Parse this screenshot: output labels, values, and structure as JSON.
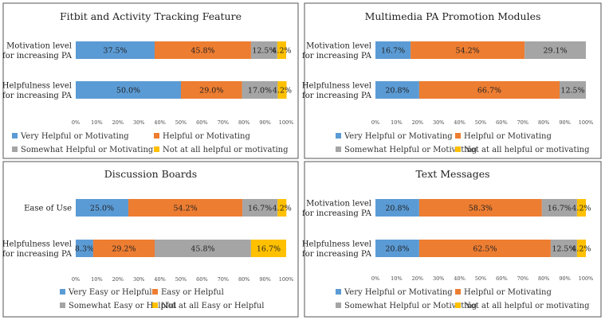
{
  "colors": {
    "blue": "#5b9bd5",
    "orange": "#ed7d31",
    "gray": "#a5a5a5",
    "yellow": "#ffc000"
  },
  "chart_data": [
    {
      "type": "bar",
      "orientation": "horizontal-stacked-100",
      "title": "Fitbit and Activity Tracking Feature",
      "categories": [
        "Motivation level for increasing PA",
        "Helpfulness level for increasing PA"
      ],
      "category_lines": [
        [
          "Motivation level",
          "for increasing PA"
        ],
        [
          "Helpfulness level",
          "for increasing PA"
        ]
      ],
      "series": [
        {
          "name": "Very Helpful or Motivating",
          "color": "blue",
          "values": [
            37.5,
            50.0
          ],
          "labels": [
            "37.5%",
            "50.0%"
          ]
        },
        {
          "name": "Helpful or Motivating",
          "color": "orange",
          "values": [
            45.8,
            29.0
          ],
          "labels": [
            "45.8%",
            "29.0%"
          ]
        },
        {
          "name": "Somewhat Helpful or Motivating",
          "color": "gray",
          "values": [
            12.5,
            17.0
          ],
          "labels": [
            "12.5%",
            "17.0%"
          ]
        },
        {
          "name": "Not at all helpful or motivating",
          "color": "yellow",
          "values": [
            4.2,
            4.2
          ],
          "labels": [
            "4.2%",
            "4.2%"
          ]
        }
      ],
      "xticks": [
        "0%",
        "10%",
        "20%",
        "30%",
        "40%",
        "50%",
        "60%",
        "70%",
        "80%",
        "90%",
        "100%"
      ],
      "xlim": [
        0,
        100
      ]
    },
    {
      "type": "bar",
      "orientation": "horizontal-stacked-100",
      "title": "Multimedia PA Promotion Modules",
      "categories": [
        "Motivation level for increasing PA",
        "Helpfulness level for increasing PA"
      ],
      "category_lines": [
        [
          "Motivation level",
          "for increasing PA"
        ],
        [
          "Helpfulness level",
          "for increasing PA"
        ]
      ],
      "series": [
        {
          "name": "Very Helpful or Motivating",
          "color": "blue",
          "values": [
            16.7,
            20.8
          ],
          "labels": [
            "16.7%",
            "20.8%"
          ]
        },
        {
          "name": "Helpful or Motivating",
          "color": "orange",
          "values": [
            54.2,
            66.7
          ],
          "labels": [
            "54.2%",
            "66.7%"
          ]
        },
        {
          "name": "Somewhat Helpful or Motivating",
          "color": "gray",
          "values": [
            29.1,
            12.5
          ],
          "labels": [
            "29.1%",
            "12.5%"
          ]
        },
        {
          "name": "Not at all helpful or motivating",
          "color": "yellow",
          "values": [
            0,
            0
          ],
          "labels": [
            "",
            ""
          ]
        }
      ],
      "xticks": [
        "0%",
        "10%",
        "20%",
        "30%",
        "40%",
        "50%",
        "60%",
        "70%",
        "80%",
        "90%",
        "100%"
      ],
      "xlim": [
        0,
        100
      ]
    },
    {
      "type": "bar",
      "orientation": "horizontal-stacked-100",
      "title": "Discussion Boards",
      "categories": [
        "Ease of Use",
        "Helpfulness level for increasing PA"
      ],
      "category_lines": [
        [
          "Ease of Use"
        ],
        [
          "Helpfulness level",
          "for increasing PA"
        ]
      ],
      "series": [
        {
          "name": "Very Easy or Helpful",
          "color": "blue",
          "values": [
            25.0,
            8.3
          ],
          "labels": [
            "25.0%",
            "8.3%"
          ]
        },
        {
          "name": "Easy or Helpful",
          "color": "orange",
          "values": [
            54.2,
            29.2
          ],
          "labels": [
            "54.2%",
            "29.2%"
          ]
        },
        {
          "name": "Somewhat Easy or Helpful",
          "color": "gray",
          "values": [
            16.7,
            45.8
          ],
          "labels": [
            "16.7%",
            "45.8%"
          ]
        },
        {
          "name": "Not at all Easy or Helpful",
          "color": "yellow",
          "values": [
            4.2,
            16.7
          ],
          "labels": [
            "4.2%",
            "16.7%"
          ]
        }
      ],
      "xticks": [
        "0%",
        "10%",
        "20%",
        "30%",
        "40%",
        "50%",
        "60%",
        "70%",
        "80%",
        "90%",
        "100%"
      ],
      "xlim": [
        0,
        100
      ]
    },
    {
      "type": "bar",
      "orientation": "horizontal-stacked-100",
      "title": "Text Messages",
      "categories": [
        "Motivation level for increasing PA",
        "Helpfulness level for increasing PA"
      ],
      "category_lines": [
        [
          "Motivation level",
          "for increasing PA"
        ],
        [
          "Helpfulness level",
          "for increasing PA"
        ]
      ],
      "series": [
        {
          "name": "Very Helpful or Motivating",
          "color": "blue",
          "values": [
            20.8,
            20.8
          ],
          "labels": [
            "20.8%",
            "20.8%"
          ]
        },
        {
          "name": "Helpful or Motivating",
          "color": "orange",
          "values": [
            58.3,
            62.5
          ],
          "labels": [
            "58.3%",
            "62.5%"
          ]
        },
        {
          "name": "Somewhat Helpful or Motivating",
          "color": "gray",
          "values": [
            16.7,
            12.5
          ],
          "labels": [
            "16.7%",
            "12.5%"
          ]
        },
        {
          "name": "Not at all helpful or motivating",
          "color": "yellow",
          "values": [
            4.2,
            4.2
          ],
          "labels": [
            "4.2%",
            "4.2%"
          ]
        }
      ],
      "xticks": [
        "0%",
        "10%",
        "20%",
        "30%",
        "40%",
        "50%",
        "60%",
        "70%",
        "80%",
        "90%",
        "100%"
      ],
      "xlim": [
        0,
        100
      ]
    }
  ]
}
